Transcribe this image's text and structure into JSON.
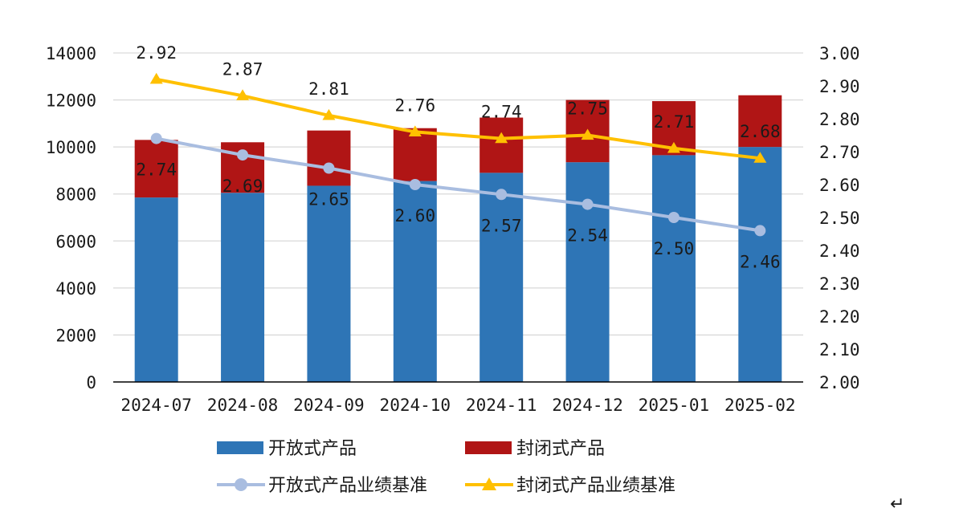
{
  "chart_data": {
    "type": "bar",
    "categories": [
      "2024-07",
      "2024-08",
      "2024-09",
      "2024-10",
      "2024-11",
      "2024-12",
      "2025-01",
      "2025-02"
    ],
    "y_left": {
      "ylim": [
        0,
        14000
      ],
      "ticks": [
        "0",
        "2000",
        "4000",
        "6000",
        "8000",
        "10000",
        "12000",
        "14000"
      ]
    },
    "y_right": {
      "ylim": [
        2.0,
        3.0
      ],
      "ticks": [
        "2.00",
        "2.10",
        "2.20",
        "2.30",
        "2.40",
        "2.50",
        "2.60",
        "2.70",
        "2.80",
        "2.90",
        "3.00"
      ]
    },
    "grid": true,
    "legend_position": "bottom",
    "series": [
      {
        "name": "开放式产品",
        "kind": "stacked-bar",
        "axis": "left",
        "color": "#2e75b6",
        "values": [
          7850,
          8050,
          8350,
          8550,
          8900,
          9350,
          9650,
          10000
        ]
      },
      {
        "name": "封闭式产品",
        "kind": "stacked-bar",
        "axis": "left",
        "color": "#b01515",
        "values": [
          2450,
          2150,
          2350,
          2250,
          2350,
          2650,
          2300,
          2200
        ]
      },
      {
        "name": "开放式产品业绩基准",
        "kind": "line",
        "marker": "circle",
        "axis": "right",
        "color": "#a9bde0",
        "values": [
          2.74,
          2.69,
          2.65,
          2.6,
          2.57,
          2.54,
          2.5,
          2.46
        ],
        "labels": [
          "2.74",
          "2.69",
          "2.65",
          "2.60",
          "2.57",
          "2.54",
          "2.50",
          "2.46"
        ]
      },
      {
        "name": "封闭式产品业绩基准",
        "kind": "line",
        "marker": "triangle",
        "axis": "right",
        "color": "#ffc000",
        "values": [
          2.92,
          2.87,
          2.81,
          2.76,
          2.74,
          2.75,
          2.71,
          2.68
        ],
        "labels": [
          "2.92",
          "2.87",
          "2.81",
          "2.76",
          "2.74",
          "2.75",
          "2.71",
          "2.68"
        ]
      }
    ]
  },
  "return_icon": "↵"
}
